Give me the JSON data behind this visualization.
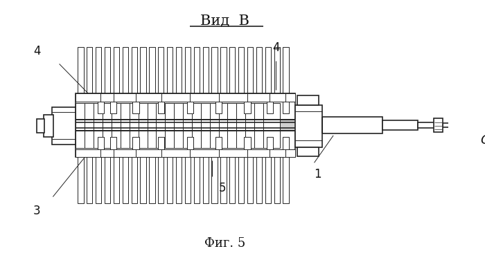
{
  "title": "Вид  В",
  "caption": "Фиг. 5",
  "bg_color": "#ffffff",
  "line_color": "#222222",
  "label_color": "#111111",
  "title_fontsize": 15,
  "caption_fontsize": 13,
  "label_fontsize": 12,
  "figsize": [
    7.0,
    3.76
  ],
  "dpi": 100
}
